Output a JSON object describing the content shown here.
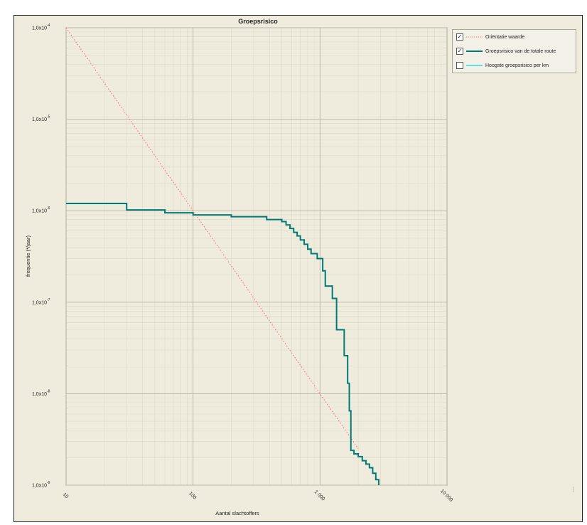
{
  "chart_data": {
    "type": "line",
    "title": "Groepsrisico",
    "xlabel": "Aantal slachtoffers",
    "ylabel": "frequentie (*/jaar)",
    "x_scale": "log",
    "y_scale": "log",
    "xlim": [
      10,
      10000
    ],
    "ylim": [
      1e-09,
      0.0001
    ],
    "grid": true,
    "x_ticks": [
      {
        "value": 10,
        "label": "10"
      },
      {
        "value": 100,
        "label": "100"
      },
      {
        "value": 1000,
        "label": "1 000"
      },
      {
        "value": 10000,
        "label": "10 000"
      }
    ],
    "y_ticks": [
      {
        "value": 0.0001,
        "base": "1,0x10",
        "exp": "-4"
      },
      {
        "value": 1e-05,
        "base": "1,0x10",
        "exp": "-5"
      },
      {
        "value": 1e-06,
        "base": "1,0x10",
        "exp": "-6"
      },
      {
        "value": 1e-07,
        "base": "1,0x10",
        "exp": "-7"
      },
      {
        "value": 1e-08,
        "base": "1,0x10",
        "exp": "-8"
      },
      {
        "value": 1e-09,
        "base": "1,0x10",
        "exp": "-9"
      }
    ],
    "legend_position": "right",
    "series": [
      {
        "name": "Oriëntatie waarde",
        "color": "#f07070",
        "style": "dotted",
        "checked": true,
        "x": [
          10,
          2000
        ],
        "y": [
          0.0001,
          2.5e-09
        ]
      },
      {
        "name": "Groepsrisico van de totale route",
        "color": "#007a78",
        "style": "step",
        "checked": true,
        "x": [
          10,
          30,
          60,
          100,
          200,
          380,
          500,
          540,
          580,
          620,
          660,
          700,
          750,
          800,
          850,
          950,
          1050,
          1100,
          1250,
          1350,
          1550,
          1650,
          1700,
          1750,
          1850,
          2000,
          2150,
          2300,
          2450,
          2600,
          2750,
          2900
        ],
        "y": [
          1.2e-06,
          1.02e-06,
          9.5e-07,
          9e-07,
          8.6e-07,
          8e-07,
          7.6e-07,
          7e-07,
          6.4e-07,
          5.8e-07,
          5.3e-07,
          4.8e-07,
          4.3e-07,
          3.8e-07,
          3.4e-07,
          3e-07,
          2.2e-07,
          1.5e-07,
          1.1e-07,
          5e-08,
          2.6e-08,
          1.3e-08,
          6.5e-09,
          2.4e-09,
          2.2e-09,
          2.05e-09,
          1.85e-09,
          1.7e-09,
          1.55e-09,
          1.35e-09,
          1.15e-09,
          1e-09
        ]
      },
      {
        "name": "Hoogste groepsrisico per km",
        "color": "#5fe0e8",
        "style": "solid",
        "checked": false,
        "x": [],
        "y": []
      }
    ]
  },
  "legend": {
    "items": [
      {
        "label": "Oriëntatie waarde",
        "checked": true,
        "color": "#f07070"
      },
      {
        "label": "Groepsrisico van de totale route",
        "checked": true,
        "color": "#007a78"
      },
      {
        "label": "Hoogste groepsrisico per km",
        "checked": false,
        "color": "#5fe0e8"
      }
    ],
    "check_mark": "✓"
  }
}
